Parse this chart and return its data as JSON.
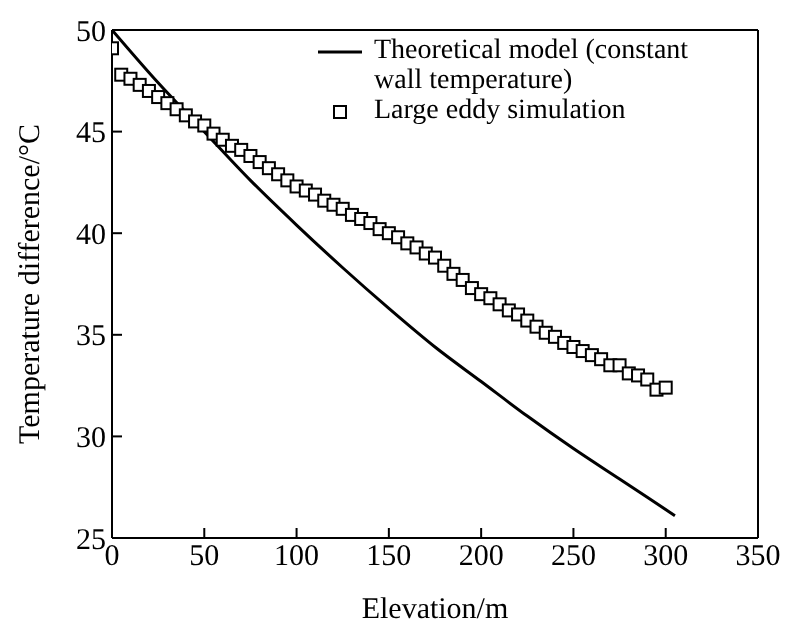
{
  "chart_data": {
    "type": "line",
    "xlabel": "Elevation/m",
    "ylabel": "Temperature difference/°C",
    "xlim": [
      0,
      350
    ],
    "xticks": [
      0,
      50,
      100,
      150,
      200,
      250,
      300,
      350
    ],
    "ylim": [
      25,
      50
    ],
    "yticks": [
      25,
      30,
      35,
      40,
      45,
      50
    ],
    "legend": "top right",
    "series": [
      {
        "name": "Theoretical model (constant wall temperature)",
        "color": "#000000",
        "marker": "none",
        "line_style": "solid",
        "x": [
          0,
          25,
          50,
          75,
          100,
          125,
          150,
          175,
          200,
          225,
          250,
          275,
          305
        ],
        "values": [
          50,
          47.4,
          45.0,
          42.6,
          40.4,
          38.3,
          36.3,
          34.4,
          32.7,
          31.0,
          29.4,
          27.9,
          26.1
        ]
      },
      {
        "name": "Large eddy simulation",
        "type": "scatter",
        "color": "#000000",
        "marker": "square",
        "x": [
          0,
          5,
          10,
          15,
          20,
          25,
          30,
          35,
          40,
          45,
          50,
          55,
          60,
          65,
          70,
          75,
          80,
          85,
          90,
          95,
          100,
          105,
          110,
          115,
          120,
          125,
          130,
          135,
          140,
          145,
          150,
          155,
          160,
          165,
          170,
          175,
          180,
          185,
          190,
          195,
          200,
          205,
          210,
          215,
          220,
          225,
          230,
          235,
          240,
          245,
          250,
          255,
          260,
          265,
          270,
          275,
          280,
          285,
          290,
          295,
          300
        ],
        "values": [
          49.1,
          47.8,
          47.6,
          47.3,
          47.0,
          46.7,
          46.4,
          46.1,
          45.8,
          45.5,
          45.3,
          44.9,
          44.6,
          44.3,
          44.1,
          43.8,
          43.5,
          43.2,
          42.9,
          42.6,
          42.3,
          42.1,
          41.9,
          41.6,
          41.4,
          41.2,
          40.9,
          40.7,
          40.5,
          40.2,
          40.0,
          39.8,
          39.5,
          39.3,
          39.0,
          38.8,
          38.4,
          38.0,
          37.7,
          37.3,
          37.0,
          36.8,
          36.5,
          36.2,
          36.0,
          35.7,
          35.4,
          35.1,
          34.9,
          34.6,
          34.4,
          34.2,
          34.0,
          33.8,
          33.5,
          33.5,
          33.1,
          33.0,
          32.8,
          32.3,
          32.4
        ]
      }
    ]
  }
}
